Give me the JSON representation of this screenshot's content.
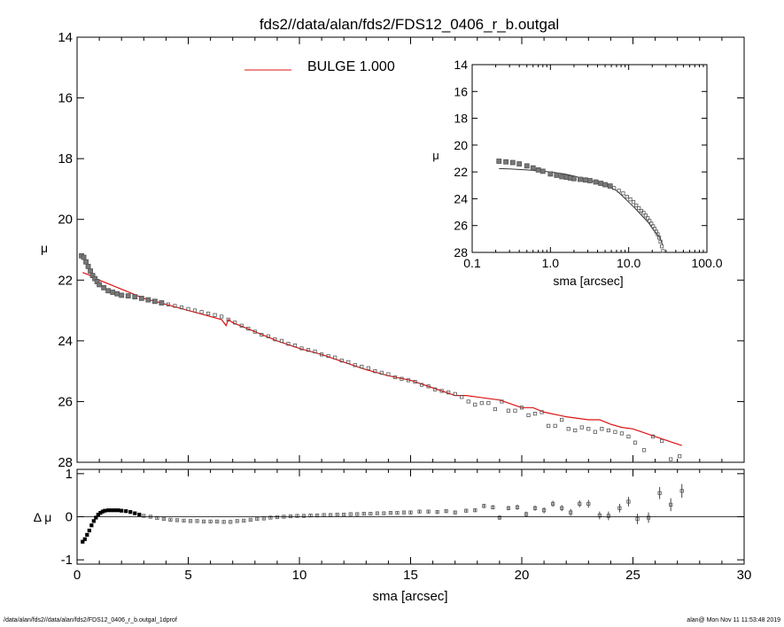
{
  "title": "fds2//data/alan/fds2/FDS12_0406_r_b.outgal",
  "footer_left": "/data/alan/fds2//data/alan/fds2/FDS12_0406_r_b.outgal_1dprof",
  "footer_right": "alan@  Mon Nov 11 11:53:48 2019",
  "colors": {
    "model": "#dd1111",
    "data": "#777777",
    "axes": "#000000"
  },
  "chart_data": [
    {
      "id": "main",
      "type": "scatter",
      "xlabel": "",
      "ylabel": "μ",
      "xlim": [
        0,
        30
      ],
      "ylim": [
        28,
        14
      ],
      "y_inverted": true,
      "xticks": [
        0,
        5,
        10,
        15,
        20,
        25,
        30
      ],
      "xtick_labels": [
        "",
        "",
        "",
        "",
        "",
        "",
        ""
      ],
      "yticks": [
        14,
        16,
        18,
        20,
        22,
        24,
        26,
        28
      ],
      "ytick_labels": [
        "14",
        "16",
        "18",
        "20",
        "22",
        "24",
        "26",
        "28"
      ],
      "legend": {
        "label": "BULGE  1.000",
        "placement": "top-center"
      },
      "series": [
        {
          "name": "BULGE  1.000",
          "kind": "line",
          "x": [
            0.25,
            0.6,
            1.0,
            1.5,
            2.0,
            2.5,
            3.0,
            4.0,
            5.0,
            6.0,
            6.5,
            6.7,
            6.8,
            7.0,
            8.0,
            9.0,
            10.0,
            11.0,
            12.0,
            13.0,
            14.0,
            15.0,
            16.0,
            17.0,
            17.5,
            18.0,
            19.0,
            20.0,
            20.5,
            21.0,
            22.0,
            23.0,
            23.5,
            24.0,
            24.5,
            25.0,
            26.0,
            27.2
          ],
          "y": [
            21.75,
            21.85,
            22.0,
            22.15,
            22.3,
            22.45,
            22.6,
            22.8,
            23.0,
            23.2,
            23.3,
            23.5,
            23.3,
            23.4,
            23.7,
            24.0,
            24.25,
            24.45,
            24.7,
            24.95,
            25.15,
            25.3,
            25.55,
            25.8,
            25.8,
            25.85,
            25.95,
            26.2,
            26.2,
            26.35,
            26.5,
            26.6,
            26.6,
            26.75,
            26.85,
            26.9,
            27.15,
            27.45
          ]
        },
        {
          "name": "",
          "kind": "points",
          "x": [
            0.2,
            0.3,
            0.4,
            0.5,
            0.6,
            0.7,
            0.8,
            0.9,
            1.0,
            1.2,
            1.4,
            1.6,
            1.8,
            2.0,
            2.3,
            2.6,
            2.9,
            3.2,
            3.5,
            3.8,
            4.1,
            4.4,
            4.7,
            5.0,
            5.3,
            5.6,
            5.9,
            6.2,
            6.5,
            6.8,
            7.1,
            7.4,
            7.7,
            8.0,
            8.3,
            8.6,
            8.9,
            9.2,
            9.5,
            9.8,
            10.1,
            10.4,
            10.7,
            11.0,
            11.3,
            11.6,
            11.9,
            12.2,
            12.5,
            12.8,
            13.1,
            13.4,
            13.7,
            14.0,
            14.3,
            14.6,
            14.9,
            15.2,
            15.5,
            15.8,
            16.1,
            16.4,
            16.7,
            17.0,
            17.3,
            17.6,
            17.9,
            18.2,
            18.5,
            18.8,
            19.1,
            19.4,
            19.7,
            20.0,
            20.3,
            20.6,
            20.9,
            21.2,
            21.5,
            21.8,
            22.1,
            22.4,
            22.7,
            23.0,
            23.3,
            23.6,
            23.9,
            24.2,
            24.5,
            24.8,
            25.1,
            25.5,
            25.9,
            26.3,
            26.7,
            27.1
          ],
          "y": [
            21.2,
            21.25,
            21.4,
            21.55,
            21.7,
            21.85,
            21.95,
            22.05,
            22.15,
            22.25,
            22.35,
            22.4,
            22.45,
            22.5,
            22.52,
            22.55,
            22.6,
            22.65,
            22.7,
            22.75,
            22.8,
            22.85,
            22.9,
            22.95,
            23.0,
            23.05,
            23.1,
            23.15,
            23.2,
            23.3,
            23.4,
            23.5,
            23.6,
            23.7,
            23.8,
            23.85,
            23.95,
            24.0,
            24.1,
            24.15,
            24.25,
            24.3,
            24.35,
            24.45,
            24.5,
            24.55,
            24.65,
            24.7,
            24.8,
            24.85,
            24.9,
            25.0,
            25.05,
            25.1,
            25.2,
            25.25,
            25.3,
            25.35,
            25.45,
            25.5,
            25.6,
            25.65,
            25.7,
            25.75,
            25.85,
            26.0,
            26.1,
            26.05,
            26.05,
            26.25,
            26.0,
            26.3,
            26.3,
            26.2,
            26.45,
            26.4,
            26.35,
            26.8,
            26.8,
            26.6,
            26.9,
            26.95,
            26.85,
            26.9,
            27.0,
            26.9,
            26.95,
            27.0,
            27.05,
            27.15,
            27.35,
            27.6,
            27.15,
            27.3,
            27.9,
            27.8
          ]
        }
      ]
    },
    {
      "id": "inset",
      "type": "scatter",
      "xlabel": "sma [arcsec]",
      "ylabel": "μ",
      "x_scale": "log",
      "xlim": [
        0.1,
        100.0
      ],
      "ylim": [
        28,
        14
      ],
      "y_inverted": true,
      "xticks": [
        0.1,
        1.0,
        10.0,
        100.0
      ],
      "xtick_labels": [
        "0.1",
        "1.0",
        "10.0",
        "100.0"
      ],
      "yticks": [
        14,
        16,
        18,
        20,
        22,
        24,
        26,
        28
      ],
      "ytick_labels": [
        "14",
        "16",
        "18",
        "20",
        "22",
        "24",
        "26",
        "28"
      ],
      "series": [
        {
          "name": "",
          "kind": "line",
          "x": [
            0.22,
            0.3,
            0.5,
            0.8,
            1.0,
            1.5,
            2.0,
            3.0,
            4.0,
            5.0,
            6.0,
            7.0,
            8.0,
            10.0,
            12.0,
            15.0,
            18.0,
            20.0,
            22.0,
            25.0,
            27.0
          ],
          "y": [
            21.75,
            21.78,
            21.85,
            21.95,
            22.0,
            22.15,
            22.3,
            22.6,
            22.8,
            23.0,
            23.2,
            23.4,
            23.7,
            24.25,
            24.7,
            25.3,
            25.8,
            26.2,
            26.5,
            26.9,
            27.4
          ]
        },
        {
          "name": "",
          "kind": "points",
          "x": [
            0.22,
            0.27,
            0.33,
            0.4,
            0.5,
            0.6,
            0.7,
            0.8,
            1.0,
            1.2,
            1.4,
            1.6,
            1.8,
            2.0,
            2.4,
            2.8,
            3.2,
            3.8,
            4.4,
            5.0,
            5.8,
            6.5,
            7.5,
            8.5,
            9.5,
            10.5,
            11.5,
            12.5,
            13.5,
            14.5,
            15.5,
            16.5,
            17.5,
            18.5,
            19.5,
            20.5,
            21.5,
            22.5,
            23.5,
            24.5,
            25.5,
            26.5,
            27.5
          ],
          "y": [
            21.2,
            21.25,
            21.3,
            21.4,
            21.55,
            21.7,
            21.85,
            21.95,
            22.15,
            22.25,
            22.35,
            22.4,
            22.45,
            22.5,
            22.55,
            22.6,
            22.65,
            22.75,
            22.85,
            22.95,
            23.05,
            23.2,
            23.4,
            23.6,
            23.85,
            24.05,
            24.25,
            24.5,
            24.7,
            24.9,
            25.05,
            25.25,
            25.45,
            25.65,
            25.85,
            26.05,
            26.25,
            26.45,
            26.65,
            26.9,
            27.2,
            27.55,
            27.9
          ]
        }
      ]
    },
    {
      "id": "residual",
      "type": "scatter",
      "xlabel": "sma [arcsec]",
      "ylabel": "Δ μ",
      "xlim": [
        0,
        30
      ],
      "ylim": [
        -1.1,
        1.1
      ],
      "xticks": [
        0,
        5,
        10,
        15,
        20,
        25,
        30
      ],
      "xtick_labels": [
        "0",
        "5",
        "10",
        "15",
        "20",
        "25",
        "30"
      ],
      "yticks": [
        -1,
        0,
        1
      ],
      "ytick_labels": [
        "-1",
        "0",
        "1"
      ],
      "zero_line": true,
      "series": [
        {
          "name": "",
          "kind": "points_with_errors",
          "x": [
            0.25,
            0.35,
            0.45,
            0.55,
            0.65,
            0.75,
            0.85,
            0.95,
            1.05,
            1.15,
            1.25,
            1.4,
            1.55,
            1.7,
            1.85,
            2.0,
            2.2,
            2.4,
            2.6,
            2.8,
            3.0,
            3.3,
            3.6,
            3.9,
            4.2,
            4.5,
            4.8,
            5.1,
            5.4,
            5.7,
            6.0,
            6.3,
            6.6,
            6.9,
            7.2,
            7.5,
            7.8,
            8.1,
            8.4,
            8.7,
            9.0,
            9.3,
            9.6,
            9.9,
            10.2,
            10.5,
            10.8,
            11.1,
            11.4,
            11.7,
            12.0,
            12.3,
            12.6,
            12.9,
            13.2,
            13.5,
            13.8,
            14.1,
            14.4,
            14.7,
            15.0,
            15.4,
            15.8,
            16.2,
            16.6,
            17.0,
            17.5,
            17.9,
            18.3,
            18.7,
            19.0,
            19.4,
            19.8,
            20.2,
            20.6,
            21.0,
            21.4,
            21.8,
            22.2,
            22.6,
            23.0,
            23.5,
            23.9,
            24.4,
            24.8,
            25.2,
            25.7,
            26.2,
            26.7,
            27.2
          ],
          "y": [
            -0.58,
            -0.52,
            -0.42,
            -0.32,
            -0.2,
            -0.1,
            -0.02,
            0.05,
            0.09,
            0.12,
            0.14,
            0.15,
            0.15,
            0.15,
            0.15,
            0.14,
            0.13,
            0.11,
            0.08,
            0.05,
            0.02,
            0.0,
            -0.03,
            -0.05,
            -0.07,
            -0.08,
            -0.09,
            -0.1,
            -0.1,
            -0.11,
            -0.11,
            -0.11,
            -0.12,
            -0.12,
            -0.1,
            -0.09,
            -0.07,
            -0.05,
            -0.04,
            -0.02,
            -0.01,
            0.0,
            0.01,
            0.02,
            0.02,
            0.03,
            0.03,
            0.04,
            0.04,
            0.05,
            0.05,
            0.06,
            0.06,
            0.07,
            0.07,
            0.08,
            0.08,
            0.09,
            0.09,
            0.1,
            0.1,
            0.12,
            0.12,
            0.11,
            0.13,
            0.1,
            0.14,
            0.15,
            0.25,
            0.22,
            -0.02,
            0.2,
            0.22,
            0.06,
            0.2,
            0.15,
            0.3,
            0.2,
            0.1,
            0.3,
            0.3,
            0.03,
            0.02,
            0.2,
            0.35,
            -0.05,
            -0.02,
            0.55,
            0.28,
            0.6
          ],
          "yerr": [
            0.02,
            0.02,
            0.02,
            0.02,
            0.02,
            0.02,
            0.02,
            0.02,
            0.02,
            0.02,
            0.02,
            0.02,
            0.02,
            0.02,
            0.02,
            0.02,
            0.02,
            0.02,
            0.02,
            0.02,
            0.02,
            0.02,
            0.02,
            0.02,
            0.02,
            0.02,
            0.02,
            0.02,
            0.02,
            0.02,
            0.02,
            0.02,
            0.02,
            0.02,
            0.02,
            0.02,
            0.02,
            0.02,
            0.02,
            0.02,
            0.02,
            0.02,
            0.02,
            0.02,
            0.02,
            0.02,
            0.02,
            0.02,
            0.02,
            0.02,
            0.02,
            0.02,
            0.02,
            0.02,
            0.02,
            0.02,
            0.02,
            0.02,
            0.02,
            0.02,
            0.03,
            0.03,
            0.03,
            0.03,
            0.03,
            0.04,
            0.04,
            0.04,
            0.05,
            0.05,
            0.05,
            0.05,
            0.06,
            0.06,
            0.06,
            0.07,
            0.07,
            0.07,
            0.08,
            0.08,
            0.09,
            0.09,
            0.1,
            0.1,
            0.11,
            0.12,
            0.12,
            0.14,
            0.15,
            0.16
          ]
        }
      ]
    }
  ]
}
